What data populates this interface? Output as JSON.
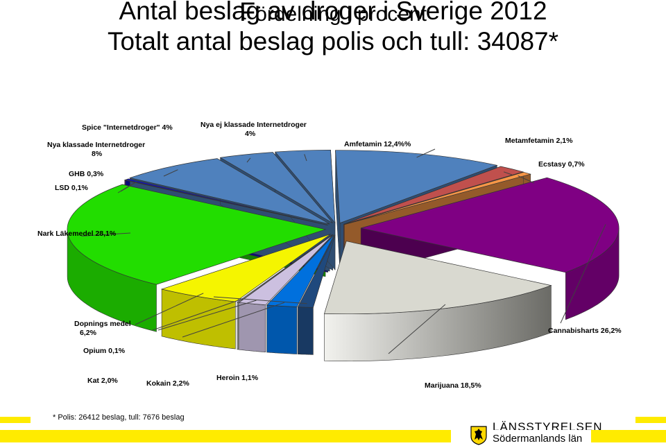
{
  "title": {
    "line1": "Antal beslag av droger i Sverige 2012",
    "line2": "Totalt antal beslag polis och tull: 34087*",
    "line3_initial": "F",
    "line3_rest": "ördelning i procent"
  },
  "footnote": "* Polis: 26412 beslag, tull: 7676 beslag",
  "logo": {
    "line1": "LÄNSSTYRELSEN",
    "line2": "Södermanlands län",
    "icon": "lion-crest-icon"
  },
  "chart_data": {
    "type": "pie",
    "style": "3d-exploded",
    "unit": "%",
    "slices": [
      {
        "label": "Amfetamin 12,4%%",
        "value": 12.4,
        "color": "#4f81bd"
      },
      {
        "label": "Metamfetamin 2,1%",
        "value": 2.1,
        "color": "#c0504d"
      },
      {
        "label": "Ecstasy 0,7%",
        "value": 0.7,
        "color": "#f79646"
      },
      {
        "label": "Cannabisharts 26,2%",
        "value": 26.2,
        "color": "#7f0083"
      },
      {
        "label": "Marijuana 18,5%",
        "value": 18.5,
        "color": "#d9d9d0"
      },
      {
        "label": "Heroin 1,1%",
        "value": 1.1,
        "color": "#1f497d"
      },
      {
        "label": "Kokain 2,2%",
        "value": 2.2,
        "color": "#0070dd"
      },
      {
        "label": "Kat 2,0%",
        "value": 2.0,
        "color": "#ccc0e0"
      },
      {
        "label": "Opium 0,1%",
        "value": 0.1,
        "color": "#e0e0e0"
      },
      {
        "label": "Dopnings medel 6,2%",
        "value": 6.2,
        "color": "#f5f500"
      },
      {
        "label": "Nark Läkemedel 28,1%",
        "value": 28.1,
        "color": "#22dd00"
      },
      {
        "label": "LSD 0,1%",
        "value": 0.1,
        "color": "#7030a0"
      },
      {
        "label": "GHB 0,3%",
        "value": 0.3,
        "color": "#1010cc"
      },
      {
        "label": "Nya klassade Internetdroger 8%",
        "value": 8,
        "color": "#4f81bd"
      },
      {
        "label": "Spice \"Internetdroger\" 4%",
        "value": 4,
        "color": "#4f81bd"
      },
      {
        "label": "Nya ej klassade Internetdroger 4%",
        "value": 4,
        "color": "#4f81bd"
      }
    ]
  }
}
